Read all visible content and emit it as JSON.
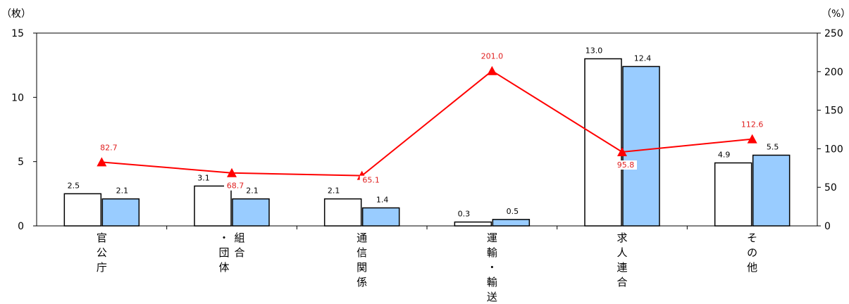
{
  "chart_data": {
    "type": "bar",
    "left_unit": "（枚）",
    "right_unit": "（%）",
    "ylim_left": [
      0,
      15
    ],
    "ylim_right": [
      0,
      250
    ],
    "yticks_left": [
      "0",
      "5",
      "10",
      "15"
    ],
    "yticks_right": [
      "0",
      "50",
      "100",
      "150",
      "200",
      "250"
    ],
    "categories": [
      {
        "lines": [
          "官",
          "公",
          "庁"
        ]
      },
      {
        "lines": [
          "組",
          "合",
          "・",
          "団",
          "体"
        ],
        "columns": [
          [
            "・",
            "団",
            "体"
          ],
          [
            "組",
            "合"
          ]
        ]
      },
      {
        "lines": [
          "通",
          "信",
          "関",
          "係"
        ]
      },
      {
        "lines": [
          "運",
          "輸",
          "・",
          "輸",
          "送"
        ],
        "columns": [
          [
            "運",
            "輸",
            "・",
            "輸",
            "送"
          ]
        ]
      },
      {
        "lines": [
          "求",
          "人",
          "連",
          "合"
        ]
      },
      {
        "lines": [
          "そ",
          "の",
          "他"
        ]
      }
    ],
    "series": [
      {
        "type": "bar",
        "values": [
          2.5,
          3.1,
          2.1,
          0.3,
          13.0,
          4.9
        ],
        "labels": [
          "2.5",
          "3.1",
          "2.1",
          "0.3",
          "13.0",
          "4.9"
        ],
        "fill": "#ffffff",
        "stroke": "#000000"
      },
      {
        "type": "bar",
        "values": [
          2.1,
          2.1,
          1.4,
          0.5,
          12.4,
          5.5
        ],
        "labels": [
          "2.1",
          "2.1",
          "1.4",
          "0.5",
          "12.4",
          "5.5"
        ],
        "fill": "#99ccff",
        "stroke": "#000000"
      },
      {
        "type": "line",
        "axis": "right",
        "values": [
          82.7,
          68.7,
          65.1,
          201.0,
          95.8,
          112.6
        ],
        "labels": [
          "82.7",
          "68.7",
          "65.1",
          "201.0",
          "95.8",
          "112.6"
        ],
        "color": "#ff0000",
        "marker": "triangle"
      }
    ]
  }
}
